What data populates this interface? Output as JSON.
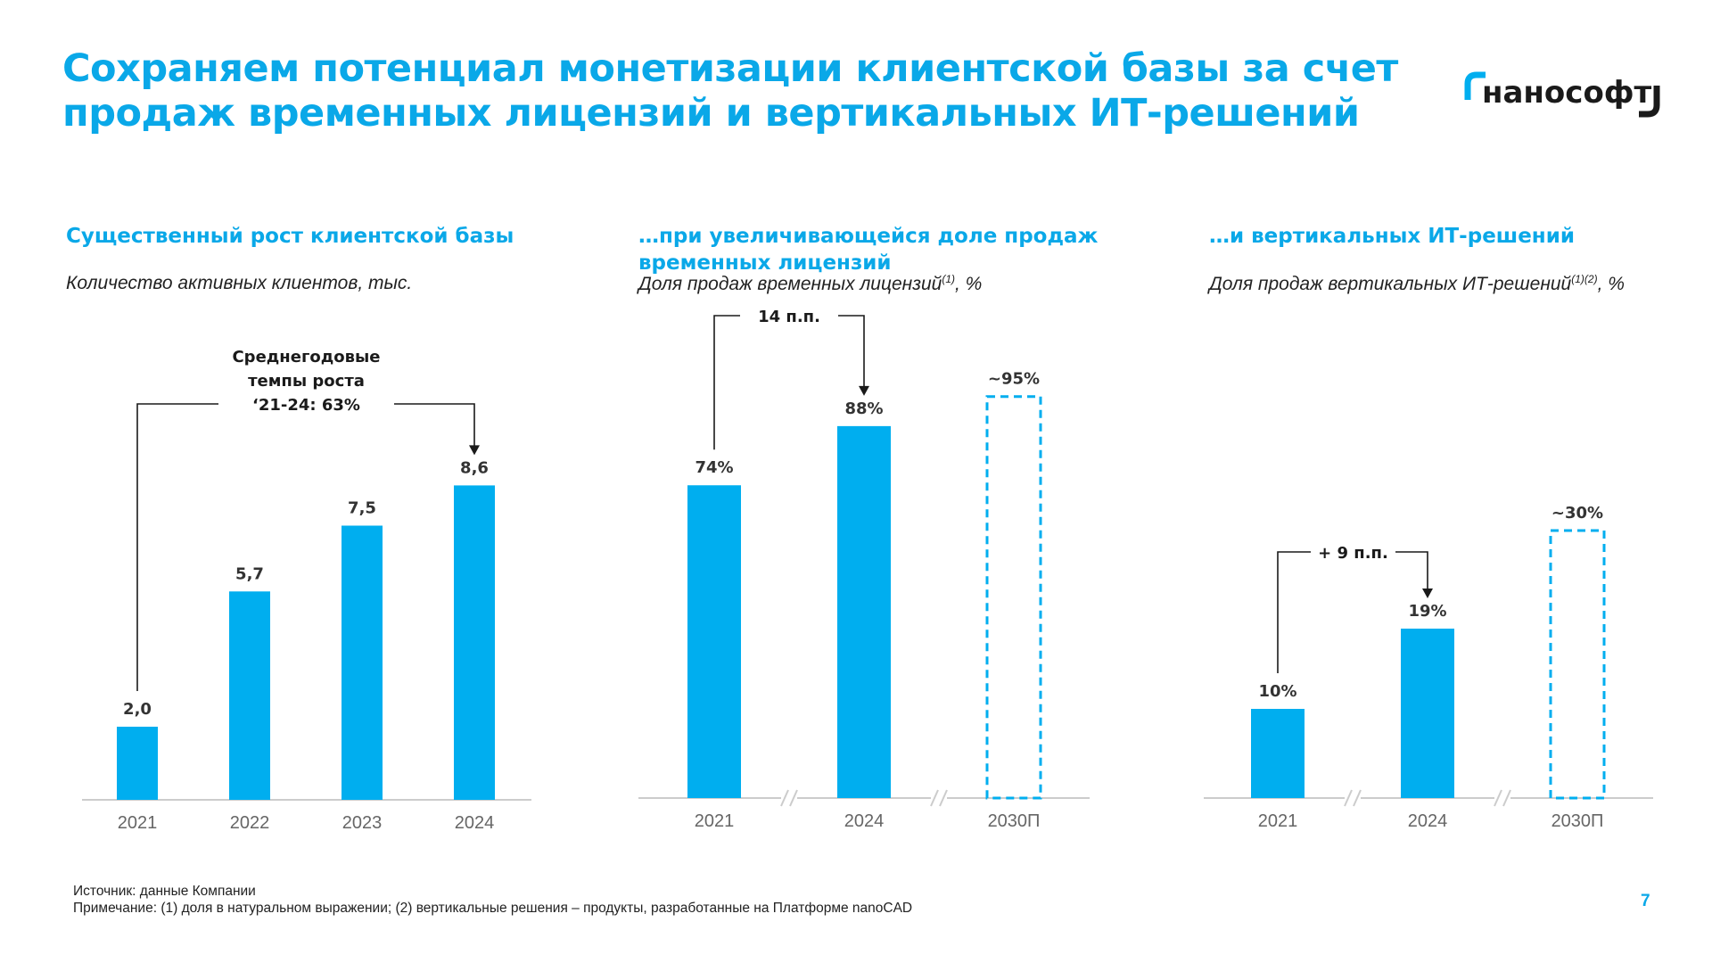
{
  "title": {
    "line1": "Сохраняем потенциал монетизации клиентской базы за счет",
    "line2": "продаж временных лицензий и вертикальных ИТ-решений"
  },
  "logo": {
    "text": "наноcофт"
  },
  "colors": {
    "accent": "#00AEEF",
    "text": "#1a1a1a",
    "axis": "#cccccc",
    "tick": "#666666"
  },
  "panels": [
    {
      "title": "Существенный рост клиентской базы",
      "subtitle": "Количество активных клиентов, тыс.",
      "sub_sup": "",
      "sub_suffix": ""
    },
    {
      "title": "…при увеличивающейся доле продаж временных лицензий",
      "subtitle": "Доля продаж временных лицензий",
      "sub_sup": "(1)",
      "sub_suffix": ", %"
    },
    {
      "title": "…и вертикальных ИТ-решений",
      "subtitle": "Доля продаж вертикальных ИТ-решений",
      "sub_sup": "(1)(2)",
      "sub_suffix": ", %"
    }
  ],
  "chart_data": [
    {
      "type": "bar",
      "title": "Количество активных клиентов, тыс.",
      "categories": [
        "2021",
        "2022",
        "2023",
        "2024"
      ],
      "values": [
        2.0,
        5.7,
        7.5,
        8.6
      ],
      "labels": [
        "2,0",
        "5,7",
        "7,5",
        "8,6"
      ],
      "forecast": [
        false,
        false,
        false,
        false
      ],
      "ylim": [
        0,
        10
      ],
      "axis_breaks": false,
      "annotation": {
        "from": 0,
        "to": 3,
        "lines": [
          "Среднегодовые",
          "темпы роста",
          "‘21-24: 63%"
        ]
      }
    },
    {
      "type": "bar",
      "title": "Доля продаж временных лицензий, %",
      "categories": [
        "2021",
        "2024",
        "2030П"
      ],
      "values": [
        74,
        88,
        95
      ],
      "labels": [
        "74%",
        "88%",
        "~95%"
      ],
      "forecast": [
        false,
        false,
        true
      ],
      "ylim": [
        0,
        100
      ],
      "axis_breaks": true,
      "annotation": {
        "from": 0,
        "to": 1,
        "lines": [
          "14 п.п."
        ]
      }
    },
    {
      "type": "bar",
      "title": "Доля продаж вертикальных ИТ-решений, %",
      "categories": [
        "2021",
        "2024",
        "2030П"
      ],
      "values": [
        10,
        19,
        30
      ],
      "labels": [
        "10%",
        "19%",
        "~30%"
      ],
      "forecast": [
        false,
        false,
        true
      ],
      "ylim": [
        0,
        55
      ],
      "axis_breaks": true,
      "annotation": {
        "from": 0,
        "to": 1,
        "lines": [
          "+ 9 п.п."
        ]
      }
    }
  ],
  "footer": {
    "source": "Источник: данные Компании",
    "note": "Примечание: (1) доля в натуральном выражении; (2) вертикальные решения – продукты, разработанные на Платформе nanoCAD"
  },
  "page_number": "7"
}
